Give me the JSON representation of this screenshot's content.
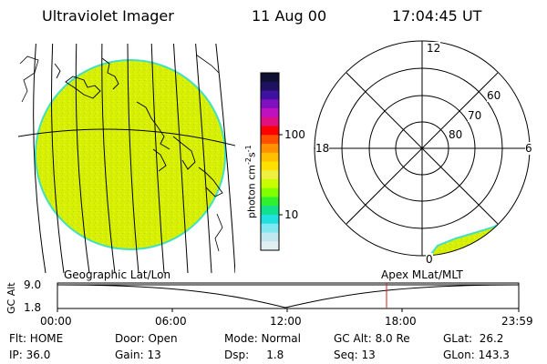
{
  "header": {
    "instrument": "Ultraviolet Imager",
    "date": "11 Aug 00",
    "time": "17:04:45 UT"
  },
  "colorbar": {
    "label": "photon cm",
    "label_sup1": "-2",
    "label_mid": "s",
    "label_sup2": "-1",
    "ticks": [
      "100",
      "10"
    ],
    "colors": [
      "#101030",
      "#201060",
      "#4010a0",
      "#8010c0",
      "#c010c0",
      "#e01080",
      "#ff0000",
      "#ff5000",
      "#ff9000",
      "#ffc000",
      "#ffe000",
      "#f0f040",
      "#c8ff00",
      "#80ff00",
      "#30f030",
      "#10e090",
      "#20e0e0",
      "#80e8f0",
      "#c0e8f0",
      "#e0f0f0"
    ]
  },
  "polar_plot": {
    "mlt_labels": [
      "12",
      "18",
      "6",
      "0"
    ],
    "lat_labels": [
      "60",
      "70",
      "80"
    ]
  },
  "timeline": {
    "y_axis_label": "GC Alt",
    "y_ticks": [
      "9.0",
      "1.8"
    ],
    "left_title": "Geographic Lat/Lon",
    "right_title": "Apex MLat/MLT",
    "x_ticks": [
      "00:00",
      "06:00",
      "12:00",
      "18:00",
      "23:59"
    ]
  },
  "info": {
    "row1": {
      "flt": "Flt: HOME",
      "door": "Door: Open",
      "mode": "Mode: Normal",
      "gcalt": "GC Alt: 8.0 Re",
      "glat": "GLat:  26.2"
    },
    "row2": {
      "ip": "IP: 36.0",
      "gain": "Gain: 13",
      "dsp": "Dsp:     1.8",
      "seq": "Seq: 13",
      "glon": "GLon: 143.3"
    }
  },
  "colors": {
    "disk": "#d8f000",
    "disk_edge": "#40e0c0",
    "marker": "#d02020"
  }
}
